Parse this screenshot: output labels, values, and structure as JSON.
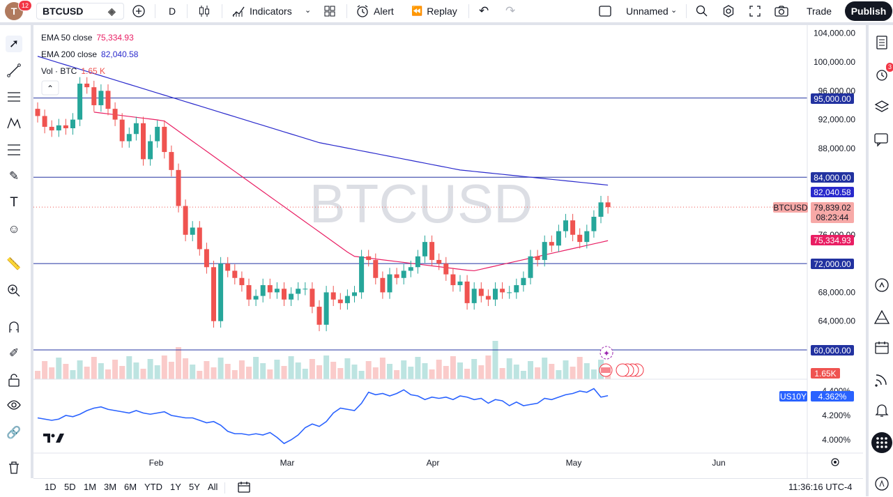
{
  "top_toolbar": {
    "avatar_letter": "T",
    "avatar_badge": "12",
    "symbol": "BTCUSD",
    "interval": "D",
    "indicators_label": "Indicators",
    "alert_label": "Alert",
    "replay_label": "Replay",
    "layout_name": "Unnamed",
    "trade_label": "Trade",
    "publish_label": "Publish"
  },
  "legend": {
    "ema50_label": "EMA 50 close",
    "ema50_value": "75,334.93",
    "ema200_label": "EMA 200 close",
    "ema200_value": "82,040.58",
    "vol_label": "Vol · BTC",
    "vol_value": "1.65 K"
  },
  "watermark": "BTCUSD",
  "price_axis": {
    "ticks": [
      "104,000.00",
      "100,000.00",
      "96,000.00",
      "92,000.00",
      "88,000.00",
      "76,000.00",
      "68,000.00",
      "64,000.00"
    ],
    "labels": {
      "h95k": "95,000.00",
      "h84k": "84,000.00",
      "ema200": "82,040.58",
      "last_price": "79,839.02",
      "countdown": "08:23:44",
      "symbol_tag": "BTCUSD",
      "ema50": "75,334.93",
      "h72k": "72,000.00",
      "h60k": "60,000.00",
      "volume": "1.65K"
    }
  },
  "sub_pane": {
    "symbol_tag": "US10Y",
    "value": "4.362%",
    "ticks": [
      "4.400%",
      "4.200%",
      "4.000%"
    ]
  },
  "time_axis": {
    "labels": [
      "Feb",
      "Mar",
      "Apr",
      "May",
      "Jun"
    ]
  },
  "bottom_bar": {
    "ranges": [
      "1D",
      "5D",
      "1M",
      "3M",
      "6M",
      "YTD",
      "1Y",
      "5Y",
      "All"
    ],
    "clock": "11:36:16 UTC-4"
  },
  "colors": {
    "up": "#26a69a",
    "down": "#ef5350",
    "ema50": "#e91e63",
    "ema200": "#2929cc",
    "hline": "#2232a0",
    "us10y": "#2962ff"
  },
  "right_toolbar": {
    "alerts_badge": "3"
  }
}
